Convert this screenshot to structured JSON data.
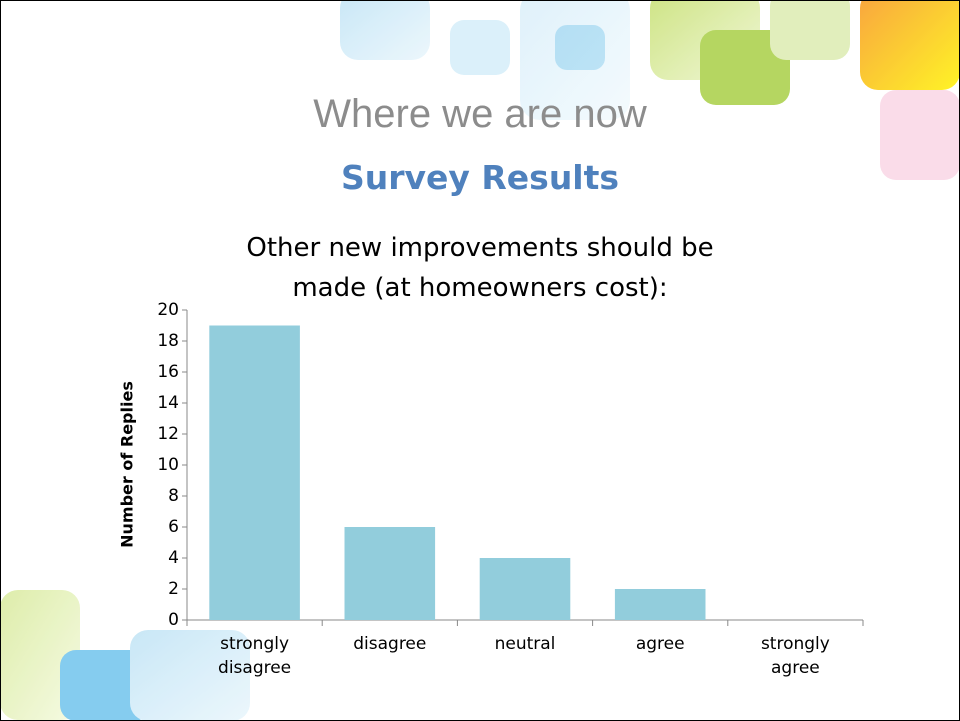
{
  "slide": {
    "title": "Where we are now",
    "subtitle": "Survey Results"
  },
  "chart_data": {
    "type": "bar",
    "title": "Other new improvements should be made (at homeowners cost):",
    "y_label": "Number of Replies",
    "categories": [
      "strongly disagree",
      "disagree",
      "neutral",
      "agree",
      "strongly agree"
    ],
    "values": [
      19,
      6,
      4,
      2,
      0
    ],
    "color": "#92cddc",
    "ylim": [
      0,
      20
    ],
    "yticks": [
      0,
      2,
      4,
      6,
      8,
      10,
      12,
      14,
      16,
      18,
      20
    ],
    "grid": false
  }
}
